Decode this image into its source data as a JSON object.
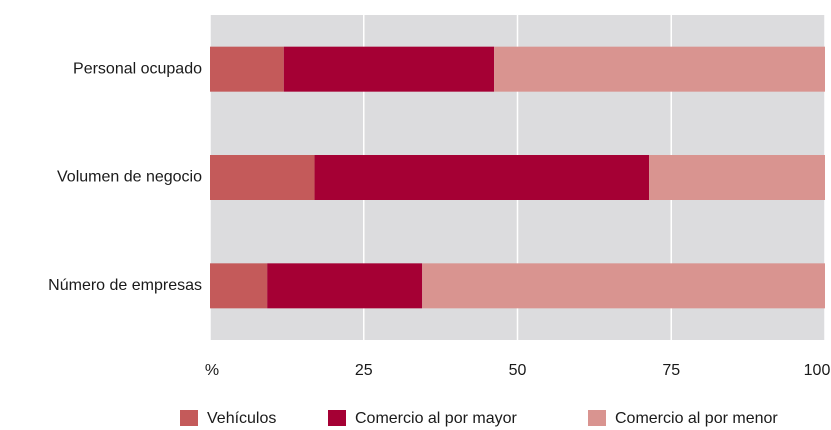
{
  "chart_data": {
    "type": "bar",
    "orientation": "horizontal",
    "stacked": true,
    "categories": [
      "Personal ocupado",
      "Volumen de negocio",
      "Número de empresas"
    ],
    "series": [
      {
        "name": "Vehículos",
        "color": "#c45a5a",
        "values": [
          12,
          17,
          9.3
        ]
      },
      {
        "name": "Comercio al por mayor",
        "color": "#a50034",
        "values": [
          34.2,
          54.4,
          25.2
        ]
      },
      {
        "name": "Comercio al por menor",
        "color": "#d99490",
        "values": [
          53.8,
          28.6,
          65.5
        ]
      }
    ],
    "xlim": [
      0,
      100
    ],
    "xticks": [
      {
        "value": 0,
        "label": "%"
      },
      25,
      50,
      75,
      100
    ],
    "grid": true,
    "legend": "bottom"
  }
}
